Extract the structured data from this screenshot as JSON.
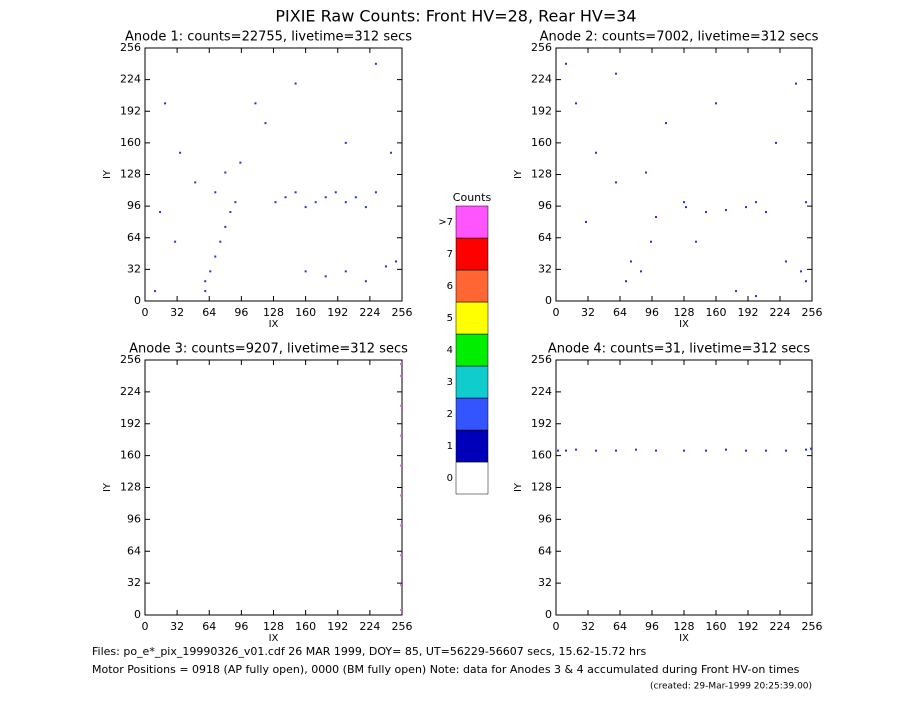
{
  "title": "PIXIE Raw Counts:  Front HV=28, Rear HV=34",
  "notes": [
    "Files: po_e*_pix_19990326_v01.cdf    26 MAR 1999, DOY= 85, UT=56229-56607 secs, 15.62-15.72 hrs",
    "Motor Positions = 0918 (AP fully open), 0000 (BM fully open)    Note: data for Anodes 3 & 4 accumulated during Front HV-on times",
    "(created: 29-Mar-1999 20:25:39.00)"
  ],
  "chart_data": [
    {
      "type": "scatter",
      "title": "Anode 1: counts=22755, livetime=312 secs",
      "x_label": "IX",
      "y_label": "IY",
      "xlim": [
        0,
        256
      ],
      "ylim": [
        0,
        256
      ],
      "xticks": [
        0,
        32,
        64,
        96,
        128,
        160,
        192,
        224,
        256
      ],
      "yticks": [
        0,
        32,
        64,
        96,
        128,
        160,
        192,
        224,
        256
      ],
      "series": [
        {
          "color": "#2233dd",
          "x": [
            10,
            20,
            35,
            50,
            60,
            65,
            70,
            75,
            80,
            85,
            90,
            70,
            80,
            60,
            95,
            130,
            140,
            150,
            160,
            170,
            180,
            190,
            200,
            210,
            220,
            230,
            160,
            180,
            200,
            220,
            240,
            250,
            110,
            120,
            150,
            200,
            230,
            245,
            30,
            15
          ],
          "y": [
            10,
            200,
            150,
            120,
            20,
            30,
            45,
            60,
            75,
            90,
            100,
            110,
            130,
            10,
            140,
            100,
            105,
            110,
            95,
            100,
            105,
            110,
            100,
            105,
            95,
            110,
            30,
            25,
            30,
            20,
            35,
            40,
            200,
            180,
            220,
            160,
            240,
            150,
            60,
            90
          ]
        }
      ]
    },
    {
      "type": "scatter",
      "title": "Anode 2: counts=7002, livetime=312 secs",
      "x_label": "IX",
      "y_label": "IY",
      "xlim": [
        0,
        256
      ],
      "ylim": [
        0,
        256
      ],
      "xticks": [
        0,
        32,
        64,
        96,
        128,
        160,
        192,
        224,
        256
      ],
      "yticks": [
        0,
        32,
        64,
        96,
        128,
        160,
        192,
        224,
        256
      ],
      "series": [
        {
          "color": "#2233dd",
          "x": [
            20,
            40,
            60,
            75,
            85,
            95,
            100,
            128,
            130,
            150,
            170,
            190,
            200,
            210,
            230,
            245,
            250,
            240,
            90,
            70,
            110,
            160,
            220,
            60,
            30,
            180,
            200,
            140,
            250,
            10
          ],
          "y": [
            200,
            150,
            120,
            40,
            30,
            60,
            85,
            100,
            95,
            90,
            92,
            95,
            100,
            90,
            40,
            30,
            20,
            220,
            130,
            20,
            180,
            200,
            160,
            230,
            80,
            10,
            5,
            60,
            100,
            240
          ]
        }
      ]
    },
    {
      "type": "scatter",
      "title": "Anode 3: counts=9207, livetime=312 secs",
      "x_label": "IX",
      "y_label": "IY",
      "xlim": [
        0,
        256
      ],
      "ylim": [
        0,
        256
      ],
      "xticks": [
        0,
        32,
        64,
        96,
        128,
        160,
        192,
        224,
        256
      ],
      "yticks": [
        0,
        32,
        64,
        96,
        128,
        160,
        192,
        224,
        256
      ],
      "series": [
        {
          "color": "#e060e0",
          "x": [
            255,
            255,
            255,
            255,
            255,
            255,
            255,
            255,
            255,
            255
          ],
          "y": [
            5,
            30,
            60,
            90,
            120,
            150,
            180,
            210,
            240,
            252
          ]
        }
      ]
    },
    {
      "type": "scatter",
      "title": "Anode 4: counts=31, livetime=312 secs",
      "x_label": "IX",
      "y_label": "IY",
      "xlim": [
        0,
        256
      ],
      "ylim": [
        0,
        256
      ],
      "xticks": [
        0,
        32,
        64,
        96,
        128,
        160,
        192,
        224,
        256
      ],
      "yticks": [
        0,
        32,
        64,
        96,
        128,
        160,
        192,
        224,
        256
      ],
      "series": [
        {
          "color": "#2233dd",
          "x": [
            2,
            10,
            20,
            40,
            60,
            80,
            100,
            128,
            150,
            170,
            190,
            210,
            230,
            250,
            255
          ],
          "y": [
            165,
            165,
            166,
            165,
            165,
            166,
            165,
            165,
            165,
            166,
            165,
            165,
            165,
            166,
            167
          ]
        }
      ]
    },
    {
      "type": "colorbar",
      "title": "Counts",
      "categories": [
        "0",
        "1",
        "2",
        "3",
        "4",
        "5",
        "6",
        "7",
        ">7"
      ],
      "colors": [
        "#ffffff",
        "#0000bb",
        "#3355ff",
        "#11cccc",
        "#00ee00",
        "#ffff00",
        "#ff6633",
        "#ff0000",
        "#ff55ff"
      ]
    }
  ]
}
